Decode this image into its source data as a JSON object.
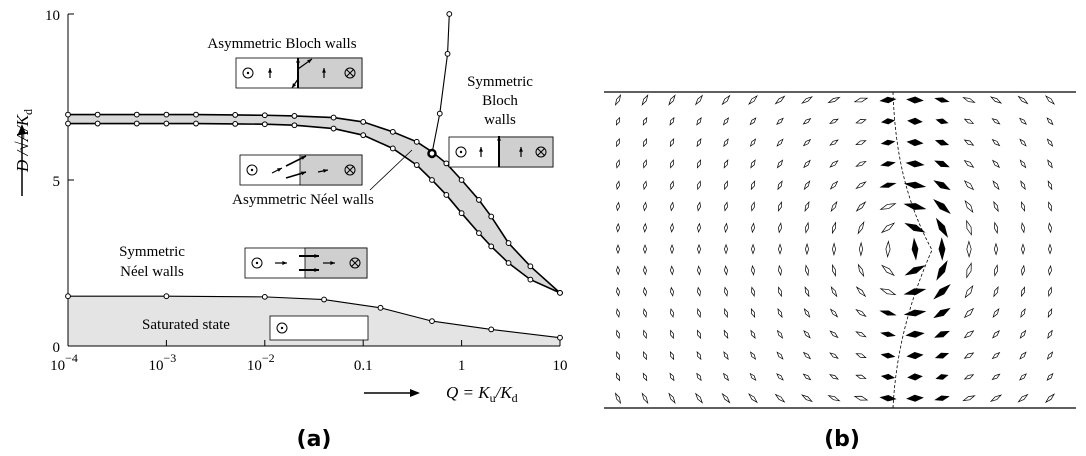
{
  "chart_data": {
    "type": "line",
    "xscale": "log",
    "xlim": [
      0.0001,
      10
    ],
    "ylim": [
      0,
      10
    ],
    "xticks": [
      {
        "value": 0.0001,
        "label": "10",
        "exponent": "−4"
      },
      {
        "value": 0.001,
        "label": "10",
        "exponent": "−3"
      },
      {
        "value": 0.01,
        "label": "10",
        "exponent": "−2"
      },
      0.1,
      1,
      10
    ],
    "yticks": [
      0,
      5,
      10
    ],
    "xlabel": [
      "Q = K",
      "u",
      "/K",
      "d"
    ],
    "ylabel": [
      "D /",
      "√",
      "A",
      "/K",
      "d"
    ],
    "band_color": "#d9d9d9",
    "series": [
      {
        "color": "#000000",
        "x": [
          0.0001,
          0.0002,
          0.0005,
          0.001,
          0.002,
          0.005,
          0.01,
          0.02,
          0.05,
          0.1,
          0.2,
          0.35,
          0.5,
          0.7,
          1,
          1.5,
          2,
          3,
          5,
          10
        ],
        "values": [
          6.97,
          6.97,
          6.97,
          6.97,
          6.97,
          6.96,
          6.95,
          6.93,
          6.88,
          6.75,
          6.45,
          6.15,
          5.85,
          5.5,
          5.0,
          4.4,
          3.9,
          3.1,
          2.4,
          1.6
        ]
      },
      {
        "color": "#000000",
        "x": [
          0.0001,
          0.0002,
          0.0005,
          0.001,
          0.002,
          0.005,
          0.01,
          0.02,
          0.05,
          0.1,
          0.2,
          0.35,
          0.5,
          0.7,
          1,
          1.5,
          2,
          3,
          5,
          10
        ],
        "values": [
          6.7,
          6.7,
          6.7,
          6.7,
          6.7,
          6.69,
          6.68,
          6.65,
          6.55,
          6.35,
          5.95,
          5.45,
          5.0,
          4.55,
          4.0,
          3.4,
          3.0,
          2.5,
          2.0,
          1.6
        ]
      },
      {
        "color": "#000000",
        "x": [
          0.5,
          0.6,
          0.72,
          0.75
        ],
        "values": [
          5.8,
          7.0,
          8.8,
          10
        ]
      },
      {
        "color": "#000000",
        "fill": "#e4e4e4",
        "x": [
          0.0001,
          0.001,
          0.01,
          0.04,
          0.15,
          0.5,
          2,
          10
        ],
        "values": [
          1.5,
          1.5,
          1.48,
          1.4,
          1.15,
          0.75,
          0.5,
          0.25
        ]
      }
    ],
    "annotations": [
      {
        "lines": [
          "Asymmetric Bloch walls"
        ]
      },
      {
        "lines": [
          "Symmetric",
          "Bloch",
          "walls"
        ]
      },
      {
        "lines": [
          "Asymmetric Néel walls"
        ]
      },
      {
        "lines": [
          "Symmetric",
          "Néel walls"
        ]
      },
      {
        "lines": [
          "Saturated state"
        ]
      }
    ]
  },
  "panel_labels": [
    "(a)",
    "(b)"
  ]
}
